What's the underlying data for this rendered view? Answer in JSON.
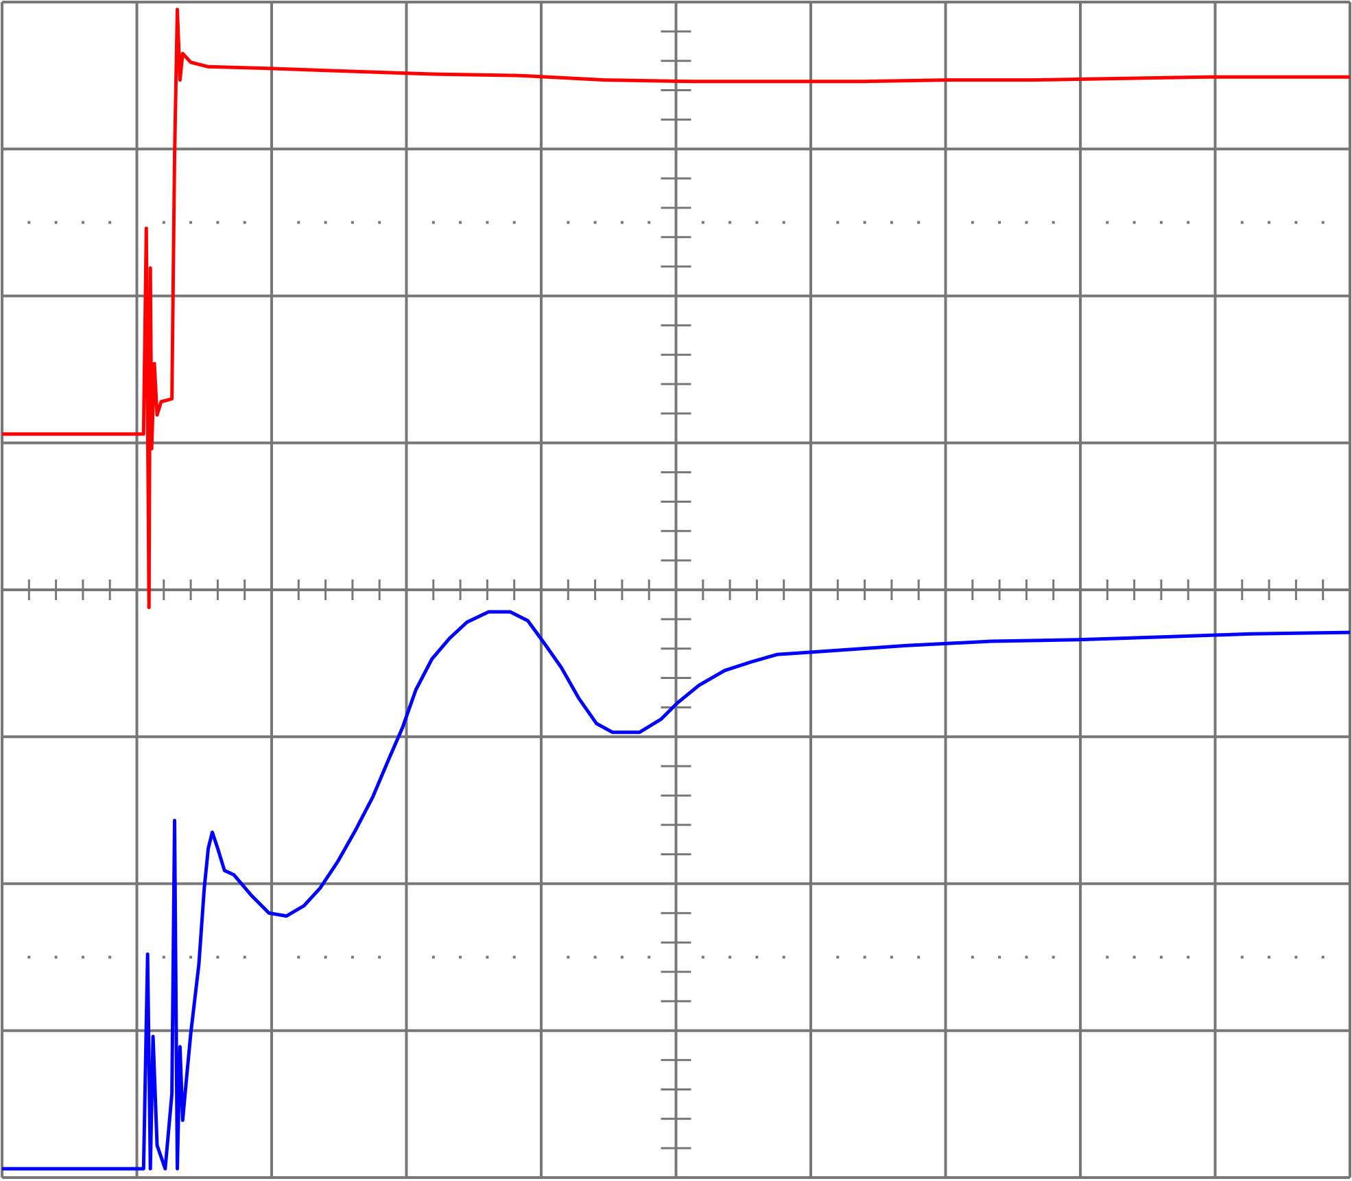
{
  "chart_data": {
    "type": "line",
    "xlim": [
      0,
      10
    ],
    "ylim": [
      -4,
      4
    ],
    "xticks": [
      0,
      1,
      2,
      3,
      4,
      5,
      6,
      7,
      8,
      9,
      10
    ],
    "yticks": [
      -4,
      -3,
      -2,
      -1,
      0,
      1,
      2,
      3,
      4
    ],
    "grid": true,
    "series": [
      {
        "color": "#ff0000",
        "x": [
          0,
          1.05,
          1.07,
          1.09,
          1.1,
          1.11,
          1.13,
          1.15,
          1.18,
          1.26,
          1.28,
          1.3,
          1.32,
          1.34,
          1.4,
          1.53,
          1.92,
          2.55,
          3.19,
          3.83,
          4.47,
          5.11,
          5.75,
          6.39,
          7.02,
          7.66,
          8.3,
          8.94,
          10
        ],
        "values": [
          1.06,
          1.06,
          2.46,
          -0.12,
          2.19,
          0.96,
          1.54,
          1.19,
          1.28,
          1.3,
          2.95,
          3.95,
          3.47,
          3.65,
          3.59,
          3.56,
          3.55,
          3.53,
          3.51,
          3.5,
          3.47,
          3.46,
          3.46,
          3.46,
          3.47,
          3.47,
          3.48,
          3.49,
          3.49
        ]
      },
      {
        "color": "#0000ff",
        "x": [
          0,
          1.05,
          1.08,
          1.1,
          1.12,
          1.15,
          1.21,
          1.26,
          1.28,
          1.3,
          1.32,
          1.34,
          1.37,
          1.4,
          1.46,
          1.5,
          1.53,
          1.56,
          1.6,
          1.65,
          1.72,
          1.85,
          1.98,
          2.11,
          2.24,
          2.36,
          2.49,
          2.62,
          2.75,
          2.87,
          2.97,
          3.07,
          3.19,
          3.32,
          3.45,
          3.61,
          3.77,
          3.9,
          4.02,
          4.15,
          4.28,
          4.41,
          4.53,
          4.73,
          4.89,
          5.01,
          5.17,
          5.36,
          5.56,
          5.75,
          6.07,
          6.7,
          7.34,
          7.98,
          8.62,
          9.26,
          10
        ],
        "values": [
          -3.94,
          -3.94,
          -2.48,
          -3.94,
          -3.04,
          -3.78,
          -3.94,
          -3.43,
          -1.57,
          -3.94,
          -3.11,
          -3.61,
          -3.31,
          -3.02,
          -2.55,
          -2.03,
          -1.76,
          -1.65,
          -1.76,
          -1.91,
          -1.94,
          -2.08,
          -2.2,
          -2.22,
          -2.15,
          -2.03,
          -1.85,
          -1.64,
          -1.41,
          -1.15,
          -0.94,
          -0.68,
          -0.47,
          -0.33,
          -0.22,
          -0.15,
          -0.15,
          -0.21,
          -0.36,
          -0.53,
          -0.74,
          -0.91,
          -0.97,
          -0.97,
          -0.88,
          -0.77,
          -0.65,
          -0.55,
          -0.49,
          -0.44,
          -0.42,
          -0.38,
          -0.35,
          -0.34,
          -0.32,
          -0.3,
          -0.29
        ]
      }
    ]
  }
}
